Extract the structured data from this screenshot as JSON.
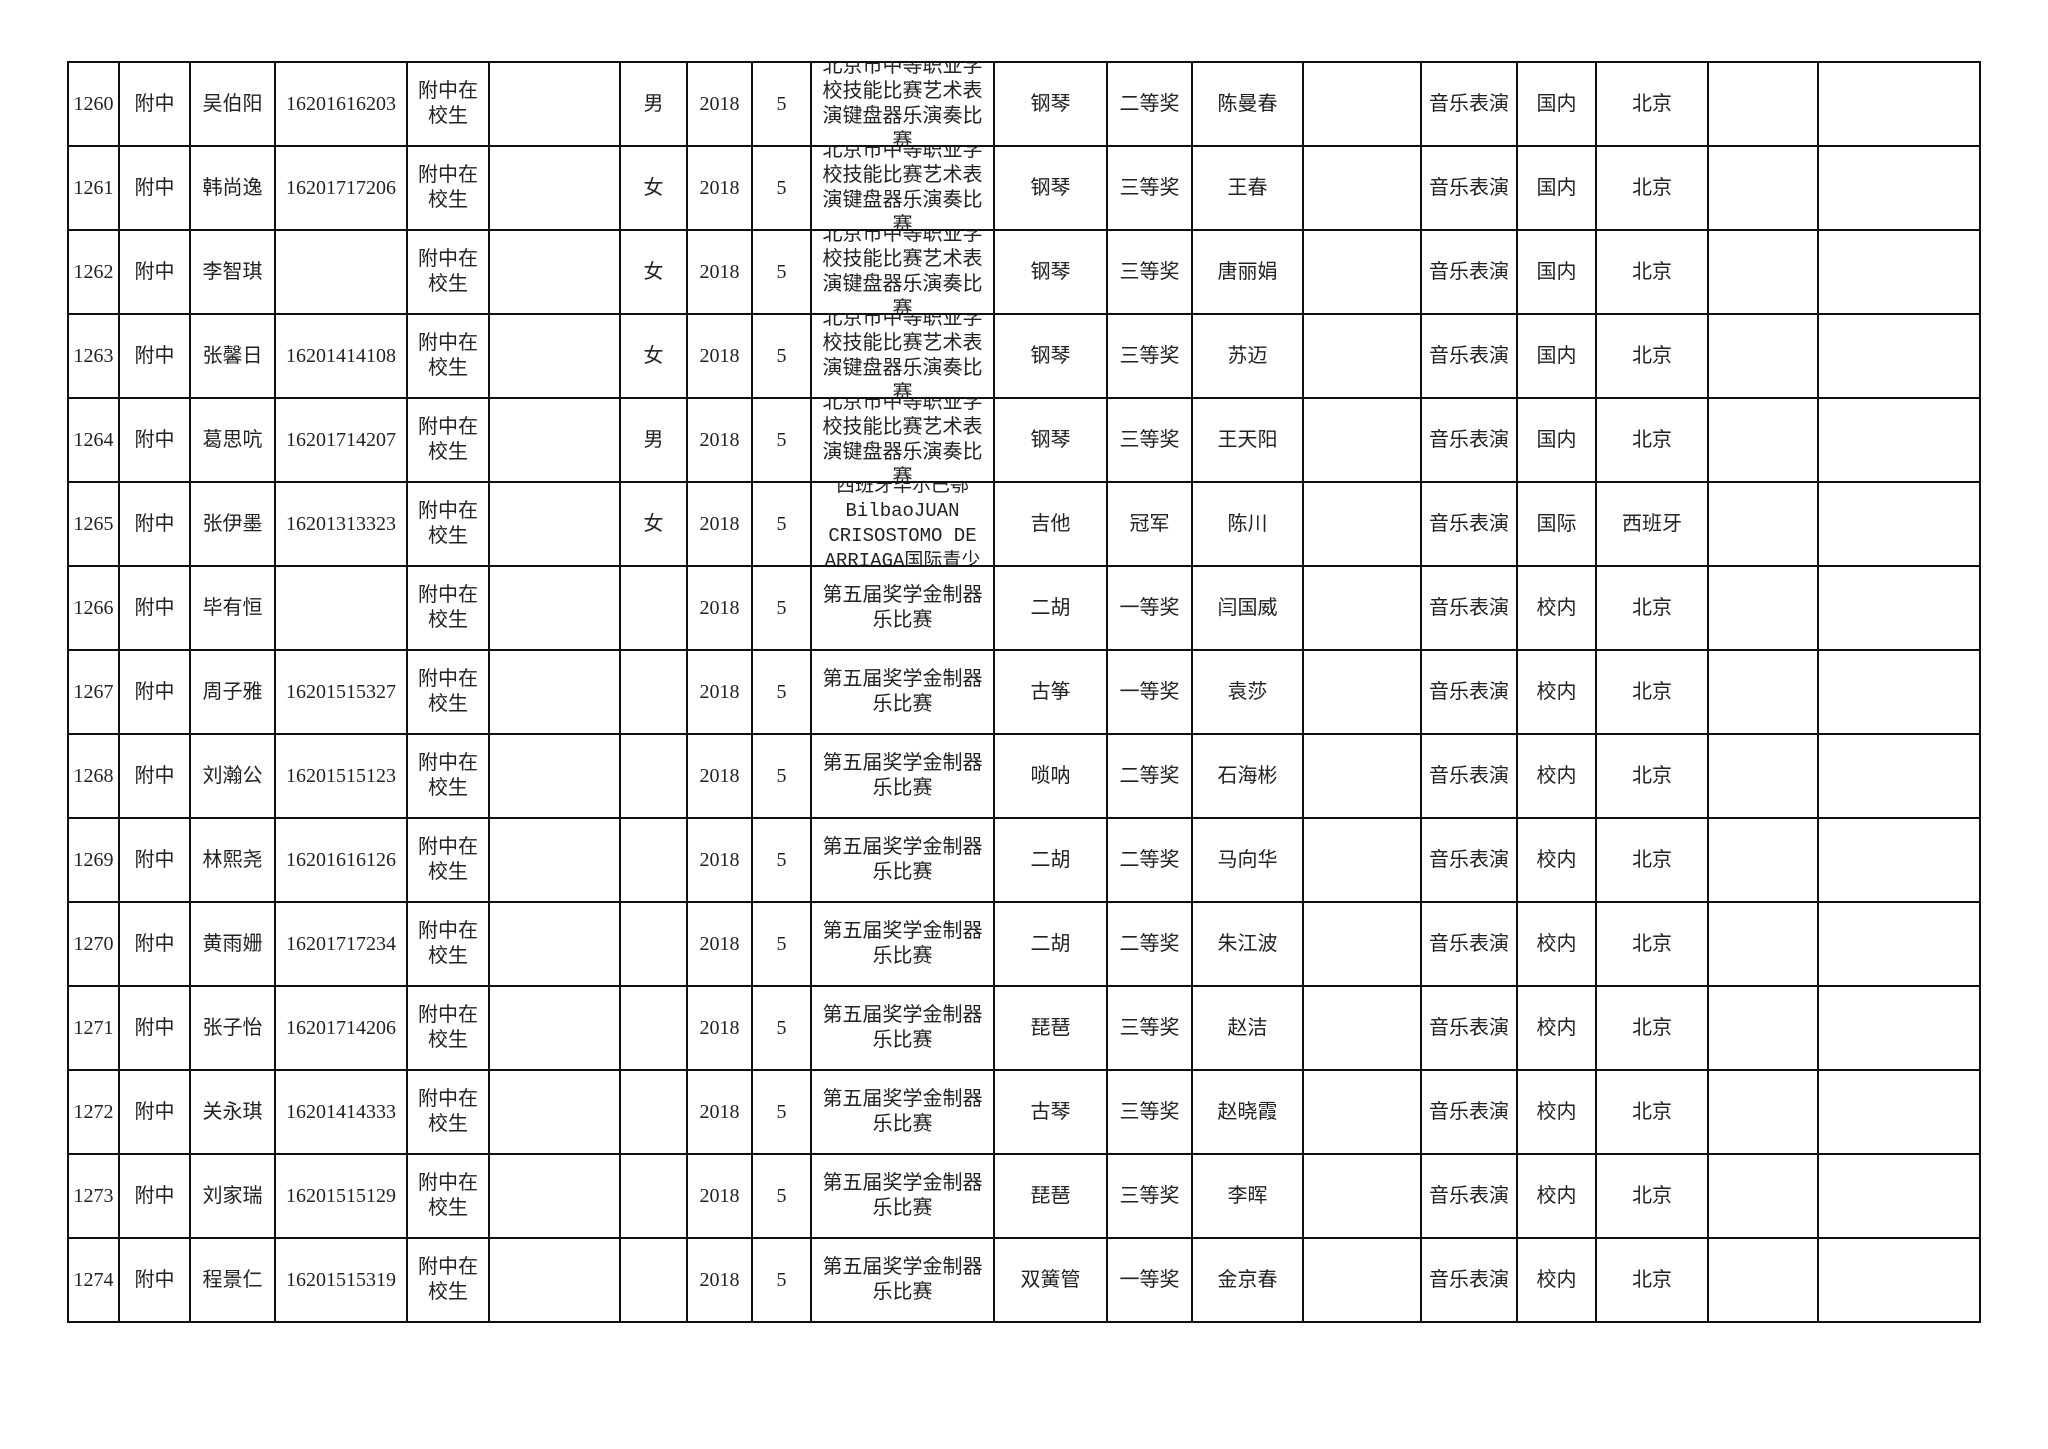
{
  "rows": [
    [
      "1260",
      "附中",
      "吴伯阳",
      "16201616203",
      "附中在校生",
      "",
      "男",
      "2018",
      "5",
      "北京市中等职业学校技能比赛艺术表演键盘器乐演奏比赛",
      "钢琴",
      "二等奖",
      "陈曼春",
      "",
      "音乐表演",
      "国内",
      "北京",
      "",
      ""
    ],
    [
      "1261",
      "附中",
      "韩尚逸",
      "16201717206",
      "附中在校生",
      "",
      "女",
      "2018",
      "5",
      "北京市中等职业学校技能比赛艺术表演键盘器乐演奏比赛",
      "钢琴",
      "三等奖",
      "王春",
      "",
      "音乐表演",
      "国内",
      "北京",
      "",
      ""
    ],
    [
      "1262",
      "附中",
      "李智琪",
      "",
      "附中在校生",
      "",
      "女",
      "2018",
      "5",
      "北京市中等职业学校技能比赛艺术表演键盘器乐演奏比赛",
      "钢琴",
      "三等奖",
      "唐丽娟",
      "",
      "音乐表演",
      "国内",
      "北京",
      "",
      ""
    ],
    [
      "1263",
      "附中",
      "张馨日",
      "16201414108",
      "附中在校生",
      "",
      "女",
      "2018",
      "5",
      "北京市中等职业学校技能比赛艺术表演键盘器乐演奏比赛",
      "钢琴",
      "三等奖",
      "苏迈",
      "",
      "音乐表演",
      "国内",
      "北京",
      "",
      ""
    ],
    [
      "1264",
      "附中",
      "葛思吭",
      "16201714207",
      "附中在校生",
      "",
      "男",
      "2018",
      "5",
      "北京市中等职业学校技能比赛艺术表演键盘器乐演奏比赛",
      "钢琴",
      "三等奖",
      "王天阳",
      "",
      "音乐表演",
      "国内",
      "北京",
      "",
      ""
    ],
    [
      "1265",
      "附中",
      "张伊墨",
      "16201313323",
      "附中在校生",
      "",
      "女",
      "2018",
      "5",
      "西班牙毕尔巴鄂 BilbaoJUAN CRISOSTOMO DE ARRIAGA国际青少",
      "吉他",
      "冠军",
      "陈川",
      "",
      "音乐表演",
      "国际",
      "西班牙",
      "",
      ""
    ],
    [
      "1266",
      "附中",
      "毕有恒",
      "",
      "附中在校生",
      "",
      "",
      "2018",
      "5",
      "第五届奖学金制器乐比赛",
      "二胡",
      "一等奖",
      "闫国威",
      "",
      "音乐表演",
      "校内",
      "北京",
      "",
      ""
    ],
    [
      "1267",
      "附中",
      "周子雅",
      "16201515327",
      "附中在校生",
      "",
      "",
      "2018",
      "5",
      "第五届奖学金制器乐比赛",
      "古筝",
      "一等奖",
      "袁莎",
      "",
      "音乐表演",
      "校内",
      "北京",
      "",
      ""
    ],
    [
      "1268",
      "附中",
      "刘瀚公",
      "16201515123",
      "附中在校生",
      "",
      "",
      "2018",
      "5",
      "第五届奖学金制器乐比赛",
      "唢呐",
      "二等奖",
      "石海彬",
      "",
      "音乐表演",
      "校内",
      "北京",
      "",
      ""
    ],
    [
      "1269",
      "附中",
      "林熙尧",
      "16201616126",
      "附中在校生",
      "",
      "",
      "2018",
      "5",
      "第五届奖学金制器乐比赛",
      "二胡",
      "二等奖",
      "马向华",
      "",
      "音乐表演",
      "校内",
      "北京",
      "",
      ""
    ],
    [
      "1270",
      "附中",
      "黄雨姗",
      "16201717234",
      "附中在校生",
      "",
      "",
      "2018",
      "5",
      "第五届奖学金制器乐比赛",
      "二胡",
      "二等奖",
      "朱江波",
      "",
      "音乐表演",
      "校内",
      "北京",
      "",
      ""
    ],
    [
      "1271",
      "附中",
      "张子怡",
      "16201714206",
      "附中在校生",
      "",
      "",
      "2018",
      "5",
      "第五届奖学金制器乐比赛",
      "琵琶",
      "三等奖",
      "赵洁",
      "",
      "音乐表演",
      "校内",
      "北京",
      "",
      ""
    ],
    [
      "1272",
      "附中",
      "关永琪",
      "16201414333",
      "附中在校生",
      "",
      "",
      "2018",
      "5",
      "第五届奖学金制器乐比赛",
      "古琴",
      "三等奖",
      "赵晓霞",
      "",
      "音乐表演",
      "校内",
      "北京",
      "",
      ""
    ],
    [
      "1273",
      "附中",
      "刘家瑞",
      "16201515129",
      "附中在校生",
      "",
      "",
      "2018",
      "5",
      "第五届奖学金制器乐比赛",
      "琵琶",
      "三等奖",
      "李晖",
      "",
      "音乐表演",
      "校内",
      "北京",
      "",
      ""
    ],
    [
      "1274",
      "附中",
      "程景仁",
      "16201515319",
      "附中在校生",
      "",
      "",
      "2018",
      "5",
      "第五届奖学金制器乐比赛",
      "双簧管",
      "一等奖",
      "金京春",
      "",
      "音乐表演",
      "校内",
      "北京",
      "",
      ""
    ]
  ]
}
